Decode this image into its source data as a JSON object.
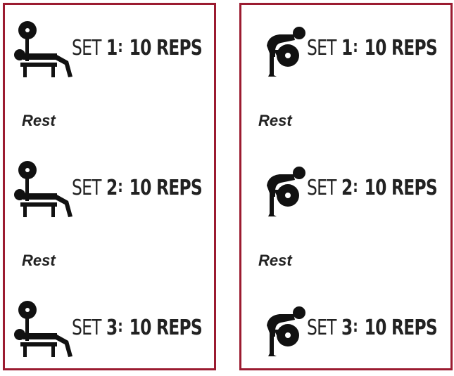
{
  "colors": {
    "border": "#9b1b30",
    "ink": "#111111",
    "text": "#222222"
  },
  "left_panel": {
    "icon": "bench-press-icon",
    "sets": [
      {
        "set_word": "SET",
        "number": "1",
        "reps": "10 REPS"
      },
      {
        "set_word": "SET",
        "number": "2",
        "reps": "10 REPS"
      },
      {
        "set_word": "SET",
        "number": "3",
        "reps": "10 REPS"
      }
    ],
    "rests": [
      "Rest",
      "Rest"
    ]
  },
  "right_panel": {
    "icon": "squat-icon",
    "sets": [
      {
        "set_word": "SET",
        "number": "1",
        "reps": "10 REPS"
      },
      {
        "set_word": "SET",
        "number": "2",
        "reps": "10 REPS"
      },
      {
        "set_word": "SET",
        "number": "3",
        "reps": "10 REPS"
      }
    ],
    "rests": [
      "Rest",
      "Rest"
    ]
  }
}
